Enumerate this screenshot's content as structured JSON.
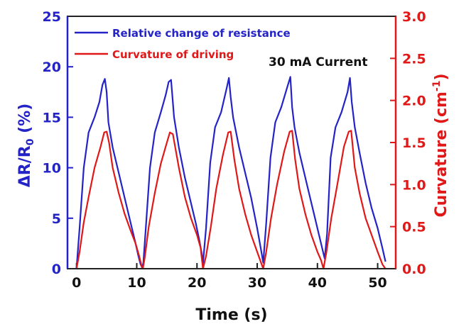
{
  "chart_data": {
    "type": "line",
    "xlabel": "Time (s)",
    "ylabel_left": "ΔR/R",
    "ylabel_left_sub": "0",
    "ylabel_left_unit": " (%)",
    "ylabel_right": "Curvature (cm",
    "ylabel_right_sup": "-1",
    "ylabel_right_close": ")",
    "annotation": "30 mA Current",
    "xlim": [
      -1.5,
      53
    ],
    "xticks": [
      "0",
      "10",
      "20",
      "30",
      "40",
      "50"
    ],
    "ylim_left": [
      0,
      25
    ],
    "yticks_left": [
      "0",
      "5",
      "10",
      "15",
      "20",
      "25"
    ],
    "ylim_right": [
      0,
      3.0
    ],
    "yticks_right": [
      "0.0",
      "0.5",
      "1.0",
      "1.5",
      "2.0",
      "2.5",
      "3.0"
    ],
    "legend_position": "top-left",
    "series": [
      {
        "name": "Relative change of resistance",
        "axis": "left",
        "color": "#2323c8",
        "x": [
          0,
          0.5,
          1.2,
          2,
          3,
          3.8,
          4.3,
          4.7,
          5.0,
          5.3,
          6,
          7,
          8,
          9,
          9.8,
          10.3,
          10.6,
          10.9,
          11.1,
          11.5,
          12.2,
          13,
          14,
          14.8,
          15.3,
          15.7,
          16.2,
          17,
          18,
          19,
          19.8,
          20.4,
          20.8,
          21.0,
          21.5,
          22.2,
          23,
          24,
          24.9,
          25.3,
          25.6,
          26,
          27,
          28,
          29,
          30,
          30.6,
          31.0,
          31.5,
          32.2,
          33,
          34,
          35,
          35.5,
          35.8,
          36.2,
          37,
          38,
          39,
          40,
          40.8,
          41.2,
          41.6,
          42.2,
          43,
          44,
          45,
          45.4,
          45.7,
          46.2,
          47,
          48,
          49,
          50,
          50.8,
          51.3
        ],
        "y": [
          0,
          4,
          10,
          13.5,
          15,
          16.5,
          18.2,
          18.8,
          17.5,
          14.5,
          12,
          9.5,
          7,
          4.5,
          2.5,
          1.2,
          0.5,
          0.1,
          0.6,
          4,
          10,
          13.5,
          15.5,
          17.2,
          18.5,
          18.7,
          15,
          12,
          9,
          6.5,
          4.5,
          2.8,
          1.5,
          0.5,
          4,
          10.5,
          14,
          15.5,
          17.8,
          18.9,
          17,
          15,
          12,
          9.5,
          7,
          4,
          2,
          0.6,
          4.5,
          11,
          14.5,
          16,
          18,
          19,
          16,
          14,
          11.5,
          9,
          6.5,
          4,
          2,
          1,
          3.5,
          11,
          14,
          15.5,
          17.5,
          18.9,
          16.5,
          14,
          11.5,
          8.5,
          6,
          4,
          2,
          0.7
        ]
      },
      {
        "name": "Curvature of driving",
        "axis": "right",
        "color": "#e01818",
        "x": [
          0,
          0.5,
          1.2,
          2,
          3,
          4,
          4.6,
          5.0,
          5.4,
          6,
          7,
          8,
          9,
          9.8,
          10.4,
          10.8,
          11.0,
          11.3,
          12,
          13,
          14,
          15,
          15.5,
          16,
          17,
          18,
          19,
          20,
          20.6,
          21.0,
          21.5,
          22.3,
          23.2,
          24.3,
          25.2,
          25.6,
          26.2,
          27,
          28,
          29,
          30,
          30.6,
          31.0,
          31.5,
          32.3,
          33.3,
          34.5,
          35.4,
          35.8,
          36.3,
          37,
          38,
          39,
          40,
          40.6,
          41.0,
          41.5,
          42.3,
          43.3,
          44.4,
          45.2,
          45.6,
          46.2,
          47,
          48,
          49,
          50,
          50.8,
          51.3
        ],
        "y": [
          0,
          0.2,
          0.55,
          0.85,
          1.2,
          1.45,
          1.62,
          1.63,
          1.5,
          1.2,
          0.9,
          0.65,
          0.45,
          0.3,
          0.15,
          0.03,
          0.0,
          0.12,
          0.5,
          0.9,
          1.25,
          1.5,
          1.62,
          1.6,
          1.2,
          0.85,
          0.6,
          0.4,
          0.25,
          0.0,
          0.15,
          0.5,
          0.95,
          1.35,
          1.62,
          1.63,
          1.3,
          0.95,
          0.65,
          0.4,
          0.2,
          0.08,
          0.0,
          0.2,
          0.6,
          1.0,
          1.4,
          1.63,
          1.64,
          1.3,
          0.95,
          0.65,
          0.4,
          0.2,
          0.1,
          0.0,
          0.2,
          0.6,
          1.0,
          1.45,
          1.63,
          1.64,
          1.2,
          0.9,
          0.6,
          0.4,
          0.2,
          0.05,
          0.0
        ]
      }
    ]
  }
}
